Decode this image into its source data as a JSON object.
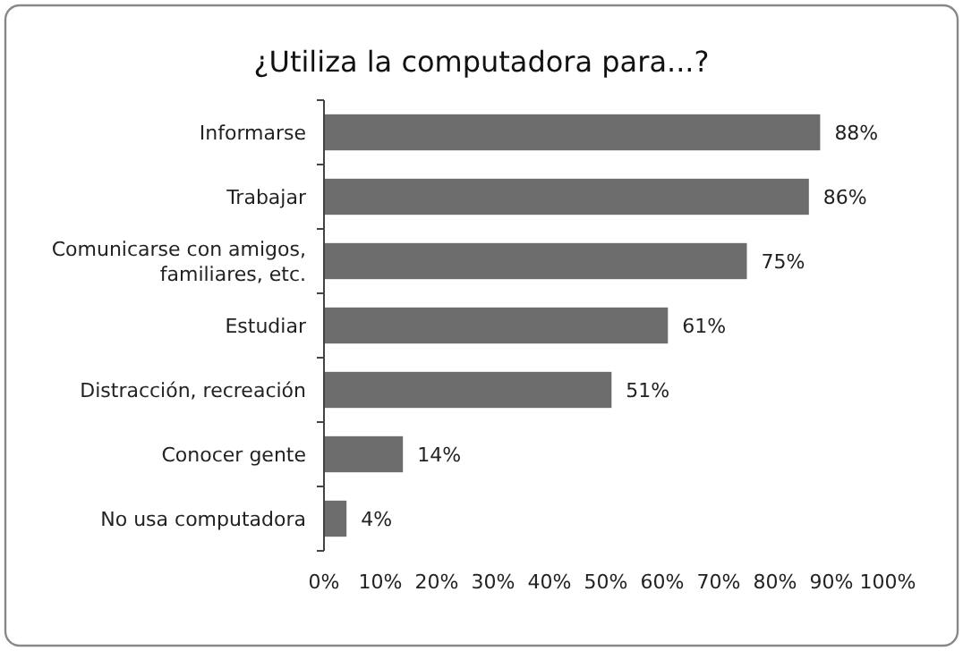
{
  "chart_data": {
    "type": "bar",
    "orientation": "horizontal",
    "title": "¿Utiliza la computadora para...?",
    "categories": [
      "Informarse",
      "Trabajar",
      "Comunicarse con amigos, familiares, etc.",
      "Estudiar",
      "Distracción, recreación",
      "Conocer gente",
      "No usa computadora"
    ],
    "values": [
      88,
      86,
      75,
      61,
      51,
      14,
      4
    ],
    "value_labels": [
      "88%",
      "86%",
      "75%",
      "61%",
      "51%",
      "14%",
      "4%"
    ],
    "color": "#6d6d6d",
    "xlim": [
      0,
      100
    ],
    "xticks": [
      {
        "value": 0,
        "label": "0%"
      },
      {
        "value": 10,
        "label": "10%"
      },
      {
        "value": 20,
        "label": "20%"
      },
      {
        "value": 30,
        "label": "30%"
      },
      {
        "value": 40,
        "label": "40%"
      },
      {
        "value": 50,
        "label": "50%"
      },
      {
        "value": 60,
        "label": "60%"
      },
      {
        "value": 70,
        "label": "70%"
      },
      {
        "value": 80,
        "label": "80%"
      },
      {
        "value": 90,
        "label": "90%"
      },
      {
        "value": 100,
        "label": "100%"
      }
    ],
    "grid": false
  }
}
